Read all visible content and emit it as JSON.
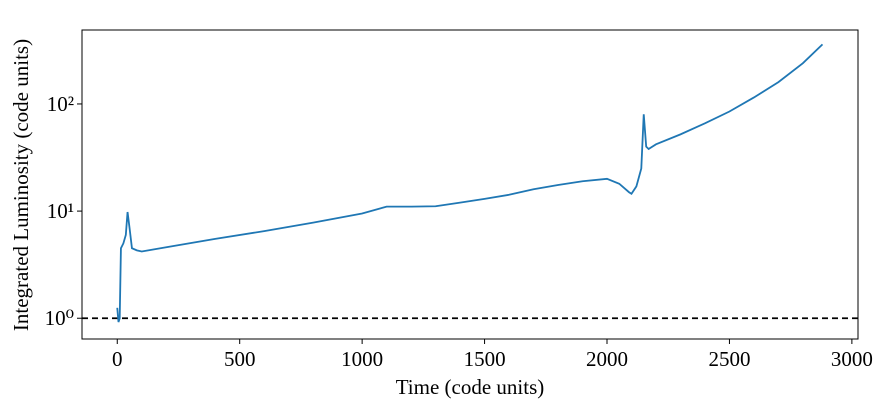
{
  "chart_data": {
    "type": "line",
    "xlabel": "Time (code units)",
    "ylabel": "Integrated Luminosity (code units)",
    "x": [
      0,
      5,
      10,
      15,
      25,
      35,
      42,
      50,
      60,
      80,
      100,
      200,
      400,
      600,
      800,
      1000,
      1100,
      1200,
      1300,
      1400,
      1500,
      1600,
      1700,
      1800,
      1900,
      2000,
      2050,
      2090,
      2100,
      2120,
      2140,
      2150,
      2160,
      2170,
      2200,
      2300,
      2400,
      2500,
      2600,
      2700,
      2800,
      2880
    ],
    "series": [
      {
        "color": "#1f77b4",
        "values": [
          1.25,
          0.92,
          1.0,
          4.5,
          5.0,
          6.0,
          9.8,
          7.0,
          4.5,
          4.3,
          4.2,
          4.6,
          5.5,
          6.5,
          7.8,
          9.5,
          11.0,
          11.0,
          11.1,
          12.0,
          13.0,
          14.2,
          16.0,
          17.5,
          19.0,
          20.0,
          18.0,
          15.0,
          14.5,
          17.0,
          25.0,
          80.0,
          40.0,
          38.0,
          42.0,
          52.0,
          66.0,
          85.0,
          115.0,
          160.0,
          240.0,
          360.0
        ]
      }
    ],
    "xlim": [
      -144,
      3025
    ],
    "ylim": [
      0.64,
      490
    ],
    "xticks": [
      0,
      500,
      1000,
      1500,
      2000,
      2500,
      3000
    ],
    "yticks": [
      {
        "value": 1,
        "label": "10⁰"
      },
      {
        "value": 10,
        "label": "10¹"
      },
      {
        "value": 100,
        "label": "10²"
      }
    ],
    "yscale": "log",
    "hline": {
      "value": 1,
      "color": "#000000"
    }
  }
}
